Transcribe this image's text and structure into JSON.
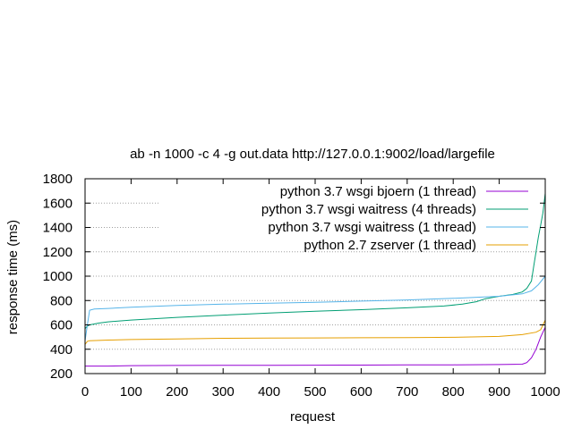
{
  "chart_data": {
    "type": "line",
    "title": "ab -n 1000 -c 4 -g out.data http://127.0.0.1:9002/load/largefile",
    "xlabel": "request",
    "ylabel": "response time (ms)",
    "xlim": [
      0,
      1000
    ],
    "ylim": [
      200,
      1800
    ],
    "xticks": [
      0,
      100,
      200,
      300,
      400,
      500,
      600,
      700,
      800,
      900,
      1000
    ],
    "yticks": [
      200,
      400,
      600,
      800,
      1000,
      1200,
      1400,
      1600,
      1800
    ],
    "grid": true,
    "legend_position": "top-right",
    "series": [
      {
        "name": "python 3.7 wsgi bjoern (1 thread)",
        "color": "#9400d3",
        "points": [
          [
            0,
            262
          ],
          [
            50,
            262
          ],
          [
            100,
            265
          ],
          [
            200,
            267
          ],
          [
            300,
            268
          ],
          [
            400,
            268
          ],
          [
            500,
            269
          ],
          [
            600,
            270
          ],
          [
            700,
            271
          ],
          [
            800,
            272
          ],
          [
            900,
            274
          ],
          [
            950,
            277
          ],
          [
            960,
            290
          ],
          [
            970,
            330
          ],
          [
            980,
            400
          ],
          [
            990,
            500
          ],
          [
            1000,
            580
          ]
        ]
      },
      {
        "name": "python 3.7 wsgi waitress (4 threads)",
        "color": "#009e73",
        "points": [
          [
            0,
            570
          ],
          [
            5,
            590
          ],
          [
            10,
            600
          ],
          [
            30,
            615
          ],
          [
            50,
            625
          ],
          [
            100,
            640
          ],
          [
            200,
            662
          ],
          [
            300,
            680
          ],
          [
            400,
            697
          ],
          [
            500,
            712
          ],
          [
            600,
            725
          ],
          [
            700,
            740
          ],
          [
            780,
            755
          ],
          [
            820,
            770
          ],
          [
            850,
            790
          ],
          [
            870,
            815
          ],
          [
            900,
            835
          ],
          [
            930,
            850
          ],
          [
            950,
            870
          ],
          [
            960,
            900
          ],
          [
            970,
            960
          ],
          [
            975,
            1080
          ],
          [
            980,
            1200
          ],
          [
            985,
            1320
          ],
          [
            990,
            1420
          ],
          [
            995,
            1520
          ],
          [
            1000,
            1680
          ]
        ]
      },
      {
        "name": "python 3.7 wsgi waitress (1 thread)",
        "color": "#56b4e9",
        "points": [
          [
            0,
            470
          ],
          [
            5,
            600
          ],
          [
            10,
            720
          ],
          [
            20,
            730
          ],
          [
            50,
            735
          ],
          [
            100,
            745
          ],
          [
            200,
            760
          ],
          [
            300,
            770
          ],
          [
            400,
            778
          ],
          [
            500,
            785
          ],
          [
            600,
            795
          ],
          [
            700,
            805
          ],
          [
            800,
            818
          ],
          [
            900,
            835
          ],
          [
            950,
            855
          ],
          [
            970,
            880
          ],
          [
            985,
            930
          ],
          [
            1000,
            1000
          ]
        ]
      },
      {
        "name": "python 2.7 zserver (1 thread)",
        "color": "#e69f00",
        "points": [
          [
            0,
            440
          ],
          [
            5,
            465
          ],
          [
            10,
            470
          ],
          [
            50,
            475
          ],
          [
            100,
            480
          ],
          [
            200,
            485
          ],
          [
            300,
            490
          ],
          [
            400,
            492
          ],
          [
            500,
            493
          ],
          [
            600,
            494
          ],
          [
            700,
            496
          ],
          [
            800,
            498
          ],
          [
            900,
            505
          ],
          [
            950,
            520
          ],
          [
            980,
            540
          ],
          [
            990,
            560
          ],
          [
            1000,
            640
          ]
        ]
      }
    ]
  }
}
